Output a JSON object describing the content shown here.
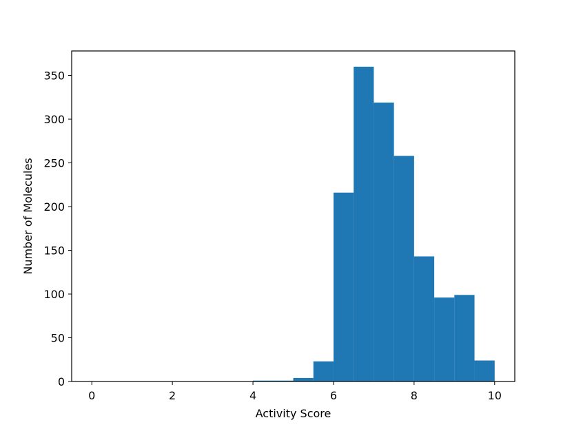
{
  "chart_data": {
    "type": "bar",
    "bins": [
      {
        "x0": 0.0,
        "x1": 0.5,
        "count": 0
      },
      {
        "x0": 0.5,
        "x1": 1.0,
        "count": 0
      },
      {
        "x0": 1.0,
        "x1": 1.5,
        "count": 0
      },
      {
        "x0": 1.5,
        "x1": 2.0,
        "count": 0
      },
      {
        "x0": 2.0,
        "x1": 2.5,
        "count": 0
      },
      {
        "x0": 2.5,
        "x1": 3.0,
        "count": 0
      },
      {
        "x0": 3.0,
        "x1": 3.5,
        "count": 0
      },
      {
        "x0": 3.5,
        "x1": 4.0,
        "count": 0
      },
      {
        "x0": 4.0,
        "x1": 4.5,
        "count": 1
      },
      {
        "x0": 4.5,
        "x1": 5.0,
        "count": 1
      },
      {
        "x0": 5.0,
        "x1": 5.5,
        "count": 4
      },
      {
        "x0": 5.5,
        "x1": 6.0,
        "count": 23
      },
      {
        "x0": 6.0,
        "x1": 6.5,
        "count": 216
      },
      {
        "x0": 6.5,
        "x1": 7.0,
        "count": 360
      },
      {
        "x0": 7.0,
        "x1": 7.5,
        "count": 319
      },
      {
        "x0": 7.5,
        "x1": 8.0,
        "count": 258
      },
      {
        "x0": 8.0,
        "x1": 8.5,
        "count": 143
      },
      {
        "x0": 8.5,
        "x1": 9.0,
        "count": 96
      },
      {
        "x0": 9.0,
        "x1": 9.5,
        "count": 99
      },
      {
        "x0": 9.5,
        "x1": 10.0,
        "count": 24
      }
    ],
    "xlabel": "Activity Score",
    "ylabel": "Number of Molecules",
    "xlim": [
      -0.5,
      10.5
    ],
    "ylim": [
      0,
      378
    ],
    "xticks": [
      0,
      2,
      4,
      6,
      8,
      10
    ],
    "yticks": [
      0,
      50,
      100,
      150,
      200,
      250,
      300,
      350
    ],
    "bar_color": "#1f77b4",
    "grid": false
  }
}
